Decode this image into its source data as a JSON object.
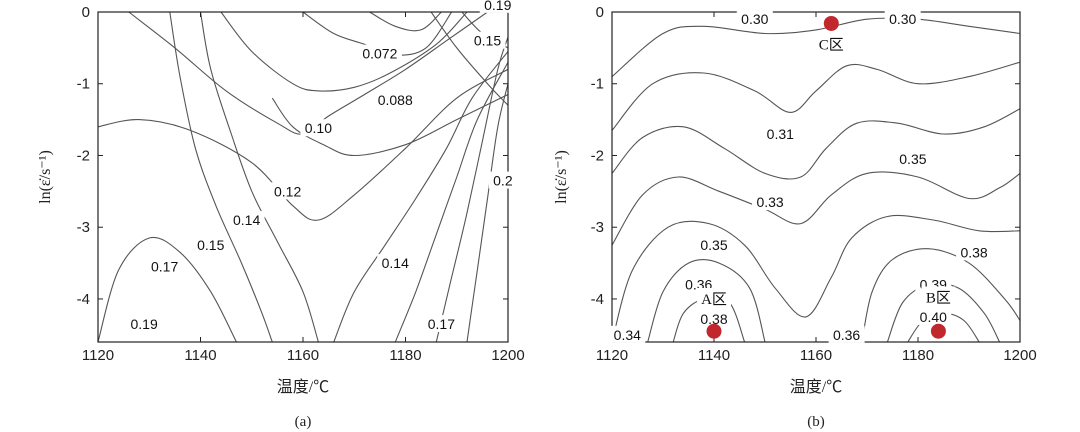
{
  "figure": {
    "chart_data": [
      {
        "type": "contour",
        "panel": "a",
        "panel_label": "(a)",
        "xlabel": "温度/℃",
        "ylabel": "ln(ε̇/s⁻¹)",
        "xlim": [
          1120,
          1200
        ],
        "ylim": [
          -4.6,
          0
        ],
        "xticks": [
          1120,
          1140,
          1160,
          1180,
          1200
        ],
        "yticks": [
          0,
          -1,
          -2,
          -3,
          -4
        ],
        "xtick_labels": [
          "1120",
          "1140",
          "1160",
          "1180",
          "1200"
        ],
        "ytick_labels": [
          "0",
          "-1",
          "-2",
          "-3",
          "-4"
        ],
        "contour_labels": [
          {
            "text": "0.19",
            "x": 1198,
            "y": 0.1
          },
          {
            "text": "0.072",
            "x": 1175,
            "y": -0.58
          },
          {
            "text": "0.15",
            "x": 1196,
            "y": -0.4
          },
          {
            "text": "0.088",
            "x": 1178,
            "y": -1.23
          },
          {
            "text": "0.10",
            "x": 1163,
            "y": -1.62
          },
          {
            "text": "0.12",
            "x": 1157,
            "y": -2.5
          },
          {
            "text": "0.2",
            "x": 1199,
            "y": -2.35
          },
          {
            "text": "0.14",
            "x": 1149,
            "y": -2.9
          },
          {
            "text": "0.15",
            "x": 1142,
            "y": -3.25
          },
          {
            "text": "0.17",
            "x": 1133,
            "y": -3.55
          },
          {
            "text": "0.14",
            "x": 1178,
            "y": -3.5
          },
          {
            "text": "0.19",
            "x": 1129,
            "y": -4.35
          },
          {
            "text": "0.17",
            "x": 1187,
            "y": -4.35
          }
        ],
        "contour_lines": [
          [
            [
              1120,
              -1.6
            ],
            [
              1128,
              -1.5
            ],
            [
              1138,
              -1.65
            ],
            [
              1150,
              -2.1
            ],
            [
              1158,
              -2.7
            ],
            [
              1163,
              -2.9
            ],
            [
              1170,
              -2.55
            ],
            [
              1180,
              -1.9
            ],
            [
              1190,
              -1.2
            ],
            [
              1200,
              -0.8
            ]
          ],
          [
            [
              1126,
              0
            ],
            [
              1135,
              -0.5
            ],
            [
              1145,
              -1.1
            ],
            [
              1155,
              -1.55
            ],
            [
              1160,
              -1.7
            ],
            [
              1165,
              -1.45
            ],
            [
              1172,
              -1.15
            ],
            [
              1180,
              -0.8
            ],
            [
              1188,
              -0.4
            ],
            [
              1196,
              0
            ]
          ],
          [
            [
              1144,
              0
            ],
            [
              1150,
              -0.55
            ],
            [
              1158,
              -1.0
            ],
            [
              1163,
              -1.1
            ],
            [
              1170,
              -1.05
            ],
            [
              1177,
              -0.85
            ],
            [
              1186,
              -0.45
            ],
            [
              1192,
              0
            ]
          ],
          [
            [
              1160,
              0
            ],
            [
              1166,
              -0.3
            ],
            [
              1172,
              -0.45
            ],
            [
              1178,
              -0.6
            ],
            [
              1184,
              -0.5
            ],
            [
              1189,
              0
            ]
          ],
          [
            [
              1173,
              0
            ],
            [
              1178,
              -0.2
            ],
            [
              1183,
              -0.25
            ],
            [
              1187,
              0
            ]
          ],
          [
            [
              1154,
              -1.2
            ],
            [
              1158,
              -1.6
            ],
            [
              1164,
              -1.85
            ],
            [
              1170,
              -2.0
            ],
            [
              1180,
              -1.85
            ],
            [
              1190,
              -1.5
            ],
            [
              1200,
              -1.15
            ]
          ],
          [
            [
              1120,
              -4.6
            ],
            [
              1124,
              -3.6
            ],
            [
              1130,
              -3.15
            ],
            [
              1136,
              -3.35
            ],
            [
              1142,
              -3.9
            ],
            [
              1147,
              -4.6
            ]
          ],
          [
            [
              1140,
              0
            ],
            [
              1142,
              -0.8
            ],
            [
              1146,
              -1.7
            ],
            [
              1150,
              -2.5
            ],
            [
              1155,
              -3.2
            ],
            [
              1160,
              -3.9
            ],
            [
              1163,
              -4.6
            ]
          ],
          [
            [
              1134,
              0
            ],
            [
              1136,
              -0.9
            ],
            [
              1139,
              -1.9
            ],
            [
              1143,
              -2.7
            ],
            [
              1148,
              -3.5
            ],
            [
              1152,
              -4.2
            ],
            [
              1154,
              -4.6
            ]
          ],
          [
            [
              1166,
              -4.6
            ],
            [
              1170,
              -3.9
            ],
            [
              1176,
              -3.25
            ],
            [
              1182,
              -2.6
            ],
            [
              1188,
              -1.9
            ],
            [
              1193,
              -1.2
            ],
            [
              1200,
              -0.55
            ]
          ],
          [
            [
              1178,
              -4.6
            ],
            [
              1182,
              -3.9
            ],
            [
              1186,
              -3.1
            ],
            [
              1190,
              -2.3
            ],
            [
              1194,
              -1.5
            ],
            [
              1200,
              -0.7
            ]
          ],
          [
            [
              1186,
              -4.6
            ],
            [
              1189,
              -3.7
            ],
            [
              1192,
              -2.8
            ],
            [
              1195,
              -1.8
            ],
            [
              1198,
              -0.8
            ],
            [
              1200,
              -0.35
            ]
          ],
          [
            [
              1192,
              -4.6
            ],
            [
              1194,
              -3.6
            ],
            [
              1196,
              -2.6
            ],
            [
              1198,
              -1.6
            ],
            [
              1200,
              -1.0
            ]
          ],
          [
            [
              1185,
              0
            ],
            [
              1190,
              -0.5
            ],
            [
              1196,
              -1.0
            ],
            [
              1200,
              -1.3
            ]
          ],
          [
            [
              1191,
              0
            ],
            [
              1195,
              -0.3
            ],
            [
              1200,
              -0.5
            ]
          ]
        ]
      },
      {
        "type": "contour",
        "panel": "b",
        "panel_label": "(b)",
        "xlabel": "温度/℃",
        "ylabel": "ln(ε̇/s⁻¹)",
        "xlim": [
          1120,
          1200
        ],
        "ylim": [
          -4.6,
          0
        ],
        "xticks": [
          1120,
          1140,
          1160,
          1180,
          1200
        ],
        "yticks": [
          0,
          -1,
          -2,
          -3,
          -4
        ],
        "xtick_labels": [
          "1120",
          "1140",
          "1160",
          "1180",
          "1200"
        ],
        "ytick_labels": [
          "0",
          "-1",
          "-2",
          "-3",
          "-4"
        ],
        "contour_labels": [
          {
            "text": "0.30",
            "x": 1148,
            "y": -0.1
          },
          {
            "text": "0.30",
            "x": 1177,
            "y": -0.1
          },
          {
            "text": "0.31",
            "x": 1153,
            "y": -1.7
          },
          {
            "text": "0.35",
            "x": 1179,
            "y": -2.05
          },
          {
            "text": "0.33",
            "x": 1151,
            "y": -2.65
          },
          {
            "text": "0.35",
            "x": 1140,
            "y": -3.25
          },
          {
            "text": "0.38",
            "x": 1191,
            "y": -3.35
          },
          {
            "text": "0.36",
            "x": 1137,
            "y": -3.8
          },
          {
            "text": "0.39",
            "x": 1183,
            "y": -3.8
          },
          {
            "text": "0.40",
            "x": 1183,
            "y": -4.25
          },
          {
            "text": "0.38",
            "x": 1140,
            "y": -4.28
          },
          {
            "text": "0.34",
            "x": 1123,
            "y": -4.5
          },
          {
            "text": "0.36",
            "x": 1166,
            "y": -4.5
          }
        ],
        "region_labels": [
          "A区",
          "B区",
          "C区"
        ],
        "regions": [
          {
            "label": "A区",
            "x": 1140,
            "y": -4.45,
            "label_x": 1140,
            "label_y": -4.0
          },
          {
            "label": "B区",
            "x": 1184,
            "y": -4.45,
            "label_x": 1184,
            "label_y": -3.98
          },
          {
            "label": "C区",
            "x": 1163,
            "y": -0.16,
            "label_x": 1163,
            "label_y": -0.45
          }
        ],
        "marker_color": "#c0282d",
        "contour_lines": [
          [
            [
              1120,
              -0.9
            ],
            [
              1130,
              -0.3
            ],
            [
              1138,
              -0.2
            ],
            [
              1150,
              -0.3
            ],
            [
              1160,
              -0.25
            ],
            [
              1170,
              -0.1
            ],
            [
              1180,
              -0.1
            ],
            [
              1190,
              -0.2
            ],
            [
              1200,
              -0.3
            ]
          ],
          [
            [
              1120,
              -1.65
            ],
            [
              1128,
              -1.0
            ],
            [
              1138,
              -0.85
            ],
            [
              1148,
              -1.1
            ],
            [
              1155,
              -1.4
            ],
            [
              1160,
              -1.1
            ],
            [
              1166,
              -0.75
            ],
            [
              1172,
              -0.8
            ],
            [
              1180,
              -1.0
            ],
            [
              1190,
              -0.9
            ],
            [
              1200,
              -0.7
            ]
          ],
          [
            [
              1120,
              -2.25
            ],
            [
              1126,
              -1.75
            ],
            [
              1134,
              -1.6
            ],
            [
              1142,
              -1.9
            ],
            [
              1150,
              -2.25
            ],
            [
              1157,
              -2.3
            ],
            [
              1162,
              -1.9
            ],
            [
              1168,
              -1.55
            ],
            [
              1176,
              -1.55
            ],
            [
              1185,
              -1.7
            ],
            [
              1193,
              -1.6
            ],
            [
              1200,
              -1.35
            ]
          ],
          [
            [
              1120,
              -3.25
            ],
            [
              1126,
              -2.55
            ],
            [
              1133,
              -2.3
            ],
            [
              1141,
              -2.5
            ],
            [
              1150,
              -2.75
            ],
            [
              1157,
              -2.95
            ],
            [
              1163,
              -2.55
            ],
            [
              1170,
              -2.25
            ],
            [
              1180,
              -2.3
            ],
            [
              1190,
              -2.6
            ],
            [
              1196,
              -2.45
            ],
            [
              1200,
              -2.25
            ]
          ],
          [
            [
              1120,
              -4.6
            ],
            [
              1124,
              -3.6
            ],
            [
              1131,
              -3.0
            ],
            [
              1139,
              -2.95
            ],
            [
              1146,
              -3.25
            ],
            [
              1152,
              -3.85
            ],
            [
              1158,
              -4.25
            ],
            [
              1163,
              -3.7
            ],
            [
              1167,
              -3.15
            ],
            [
              1174,
              -2.85
            ],
            [
              1183,
              -2.9
            ],
            [
              1192,
              -3.05
            ],
            [
              1200,
              -3.05
            ]
          ],
          [
            [
              1127,
              -4.6
            ],
            [
              1130,
              -3.9
            ],
            [
              1135,
              -3.5
            ],
            [
              1141,
              -3.5
            ],
            [
              1147,
              -3.85
            ],
            [
              1150,
              -4.6
            ]
          ],
          [
            [
              1132,
              -4.6
            ],
            [
              1134,
              -4.2
            ],
            [
              1138,
              -4.0
            ],
            [
              1143,
              -4.05
            ],
            [
              1146,
              -4.6
            ]
          ],
          [
            [
              1169,
              -4.6
            ],
            [
              1171,
              -3.9
            ],
            [
              1175,
              -3.45
            ],
            [
              1182,
              -3.3
            ],
            [
              1190,
              -3.5
            ],
            [
              1197,
              -4.0
            ],
            [
              1200,
              -4.3
            ]
          ],
          [
            [
              1174,
              -4.6
            ],
            [
              1177,
              -4.05
            ],
            [
              1182,
              -3.8
            ],
            [
              1188,
              -3.85
            ],
            [
              1193,
              -4.2
            ],
            [
              1196,
              -4.6
            ]
          ],
          [
            [
              1178,
              -4.6
            ],
            [
              1181,
              -4.3
            ],
            [
              1185,
              -4.2
            ],
            [
              1189,
              -4.3
            ],
            [
              1192,
              -4.6
            ]
          ]
        ]
      }
    ]
  }
}
